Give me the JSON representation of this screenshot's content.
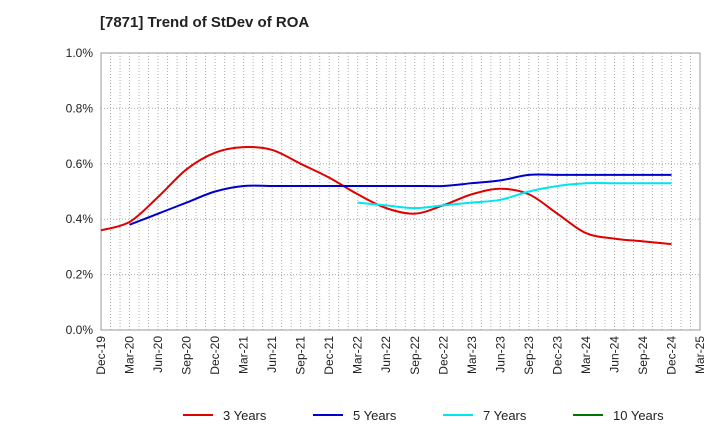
{
  "chart_data": {
    "type": "line",
    "title": "[7871]  Trend of StDev of ROA",
    "xlabel": "",
    "ylabel": "",
    "x_tick_labels": [
      "Dec-19",
      "Mar-20",
      "Jun-20",
      "Sep-20",
      "Dec-20",
      "Mar-21",
      "Jun-21",
      "Sep-21",
      "Dec-21",
      "Mar-22",
      "Jun-22",
      "Sep-22",
      "Dec-22",
      "Mar-23",
      "Jun-23",
      "Sep-23",
      "Dec-23",
      "Mar-24",
      "Jun-24",
      "Sep-24",
      "Dec-24",
      "Mar-25"
    ],
    "y_tick_labels": [
      "0.0%",
      "0.2%",
      "0.4%",
      "0.6%",
      "0.8%",
      "1.0%"
    ],
    "ylim": [
      0.0,
      1.0
    ],
    "y_unit": "%",
    "grid": true,
    "legend_position": "bottom",
    "series": [
      {
        "name": "3 Years",
        "color": "#e00000",
        "x": [
          "Dec-19",
          "Mar-20",
          "Jun-20",
          "Sep-20",
          "Dec-20",
          "Mar-21",
          "Jun-21",
          "Sep-21",
          "Dec-21",
          "Mar-22",
          "Jun-22",
          "Sep-22",
          "Dec-22",
          "Mar-23",
          "Jun-23",
          "Sep-23",
          "Dec-23",
          "Mar-24",
          "Jun-24",
          "Sep-24",
          "Dec-24"
        ],
        "values": [
          0.36,
          0.39,
          0.48,
          0.58,
          0.64,
          0.66,
          0.65,
          0.6,
          0.55,
          0.49,
          0.44,
          0.42,
          0.45,
          0.49,
          0.51,
          0.49,
          0.42,
          0.35,
          0.33,
          0.32,
          0.31
        ]
      },
      {
        "name": "5 Years",
        "color": "#0000cc",
        "x": [
          "Mar-20",
          "Jun-20",
          "Sep-20",
          "Dec-20",
          "Mar-21",
          "Jun-21",
          "Sep-21",
          "Dec-21",
          "Mar-22",
          "Jun-22",
          "Sep-22",
          "Dec-22",
          "Mar-23",
          "Jun-23",
          "Sep-23",
          "Dec-23",
          "Mar-24",
          "Jun-24",
          "Sep-24",
          "Dec-24"
        ],
        "values": [
          0.38,
          0.42,
          0.46,
          0.5,
          0.52,
          0.52,
          0.52,
          0.52,
          0.52,
          0.52,
          0.52,
          0.52,
          0.53,
          0.54,
          0.56,
          0.56,
          0.56,
          0.56,
          0.56,
          0.56
        ]
      },
      {
        "name": "7 Years",
        "color": "#00e5ee",
        "x": [
          "Mar-22",
          "Jun-22",
          "Sep-22",
          "Dec-22",
          "Mar-23",
          "Jun-23",
          "Sep-23",
          "Dec-23",
          "Mar-24",
          "Jun-24",
          "Sep-24",
          "Dec-24"
        ],
        "values": [
          0.46,
          0.45,
          0.44,
          0.45,
          0.46,
          0.47,
          0.5,
          0.52,
          0.53,
          0.53,
          0.53,
          0.53
        ]
      },
      {
        "name": "10 Years",
        "color": "#007700",
        "x": [],
        "values": []
      }
    ]
  }
}
